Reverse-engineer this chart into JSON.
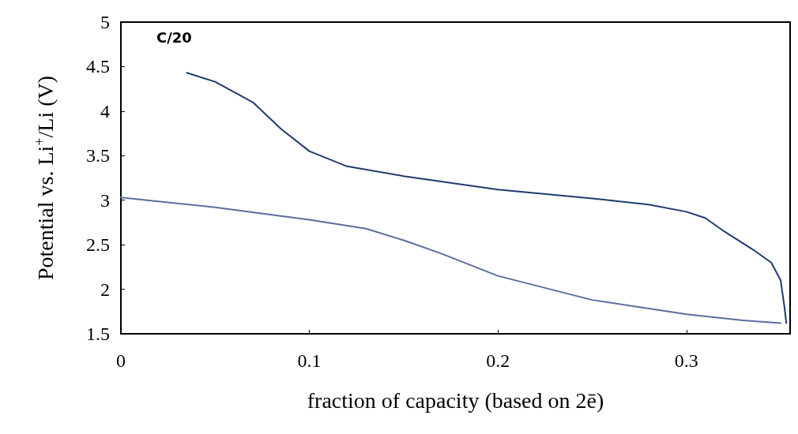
{
  "chart_data": {
    "type": "line",
    "xlabel": "fraction of capacity (based on 2ē)",
    "ylabel": "Potential vs. Li$^{+}$/Li (V)",
    "annotations": [
      "C/20"
    ],
    "xlim": [
      0,
      0.355
    ],
    "xticks": [
      0,
      0.1,
      0.2,
      0.3
    ],
    "ylim": [
      1.5,
      5
    ],
    "yticks": [
      1.5,
      2,
      2.5,
      3,
      3.5,
      4,
      4.5,
      5
    ],
    "grid": false,
    "marker": "none",
    "line_style": "solid",
    "series": [
      {
        "color": "#1f3a6e",
        "x": [
          0.035,
          0.05,
          0.07,
          0.085,
          0.1,
          0.12,
          0.15,
          0.2,
          0.25,
          0.28,
          0.3,
          0.31,
          0.32,
          0.335,
          0.345,
          0.35,
          0.352,
          0.353
        ],
        "values": [
          4.43,
          4.33,
          4.1,
          3.8,
          3.55,
          3.38,
          3.27,
          3.12,
          3.02,
          2.95,
          2.87,
          2.8,
          2.65,
          2.45,
          2.3,
          2.1,
          1.8,
          1.62
        ]
      },
      {
        "color": "#5a6e9e",
        "x": [
          0,
          0.05,
          0.1,
          0.13,
          0.15,
          0.17,
          0.2,
          0.25,
          0.3,
          0.33,
          0.35
        ],
        "values": [
          3.03,
          2.92,
          2.78,
          2.68,
          2.55,
          2.4,
          2.15,
          1.88,
          1.72,
          1.65,
          1.62
        ]
      }
    ]
  }
}
